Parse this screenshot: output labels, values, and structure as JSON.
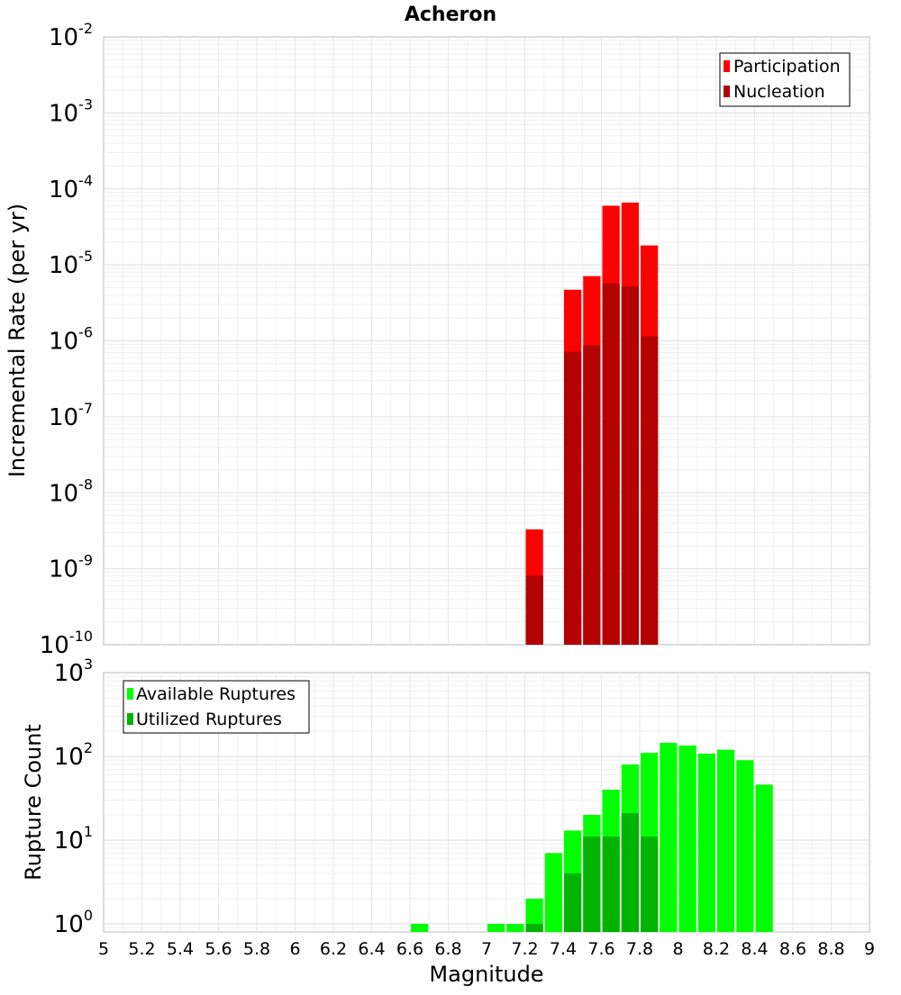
{
  "chart_data": [
    {
      "type": "bar",
      "title": "Acheron",
      "xlabel": "",
      "ylabel": "Incremental Rate (per yr)",
      "yscale": "log",
      "ylim": [
        1e-10,
        0.01
      ],
      "xlim": [
        5,
        9
      ],
      "ytick_labels": [
        {
          "base": "10",
          "exp": "-10"
        },
        {
          "base": "10",
          "exp": "-9"
        },
        {
          "base": "10",
          "exp": "-8"
        },
        {
          "base": "10",
          "exp": "-7"
        },
        {
          "base": "10",
          "exp": "-6"
        },
        {
          "base": "10",
          "exp": "-5"
        },
        {
          "base": "10",
          "exp": "-4"
        },
        {
          "base": "10",
          "exp": "-3"
        },
        {
          "base": "10",
          "exp": "-2"
        }
      ],
      "legend": [
        {
          "label": "Participation",
          "color": "#ff0000"
        },
        {
          "label": "Nucleation",
          "color": "#b30000"
        }
      ],
      "legend_position": "top-right",
      "series": [
        {
          "name": "Participation",
          "color": "#ff0000",
          "x": [
            7.25,
            7.45,
            7.55,
            7.65,
            7.75,
            7.85
          ],
          "values": [
            3.3e-09,
            4.7e-06,
            7.1e-06,
            6e-05,
            6.6e-05,
            1.8e-05
          ]
        },
        {
          "name": "Nucleation",
          "color": "#b30000",
          "x": [
            7.25,
            7.45,
            7.55,
            7.65,
            7.75,
            7.85
          ],
          "values": [
            8.2e-10,
            7.2e-07,
            8.7e-07,
            5.7e-06,
            5.2e-06,
            1.15e-06
          ]
        }
      ]
    },
    {
      "type": "bar",
      "title": "",
      "xlabel": "Magnitude",
      "ylabel": "Rupture Count",
      "yscale": "log",
      "ylim": [
        0.8,
        1000
      ],
      "xlim": [
        5,
        9
      ],
      "xtick_labels": [
        "5",
        "5.2",
        "5.4",
        "5.6",
        "5.8",
        "6",
        "6.2",
        "6.4",
        "6.6",
        "6.8",
        "7",
        "7.2",
        "7.4",
        "7.6",
        "7.8",
        "8",
        "8.2",
        "8.4",
        "8.6",
        "8.8",
        "9"
      ],
      "ytick_labels": [
        {
          "base": "10",
          "exp": "0"
        },
        {
          "base": "10",
          "exp": "1"
        },
        {
          "base": "10",
          "exp": "2"
        },
        {
          "base": "10",
          "exp": "3"
        }
      ],
      "legend": [
        {
          "label": "Available Ruptures",
          "color": "#00ff00"
        },
        {
          "label": "Utilized Ruptures",
          "color": "#00b300"
        }
      ],
      "legend_position": "top-left",
      "series": [
        {
          "name": "Available Ruptures",
          "color": "#00ff00",
          "x": [
            6.65,
            7.05,
            7.15,
            7.25,
            7.35,
            7.45,
            7.55,
            7.65,
            7.75,
            7.85,
            7.95,
            8.05,
            8.15,
            8.25,
            8.35,
            8.45
          ],
          "values": [
            1,
            1,
            1,
            2,
            7,
            13,
            20,
            40,
            80,
            110,
            145,
            135,
            108,
            120,
            90,
            46
          ]
        },
        {
          "name": "Utilized Ruptures",
          "color": "#00b300",
          "x": [
            7.25,
            7.45,
            7.55,
            7.65,
            7.75,
            7.85
          ],
          "values": [
            1,
            4,
            11,
            11,
            21,
            11
          ]
        }
      ]
    }
  ]
}
